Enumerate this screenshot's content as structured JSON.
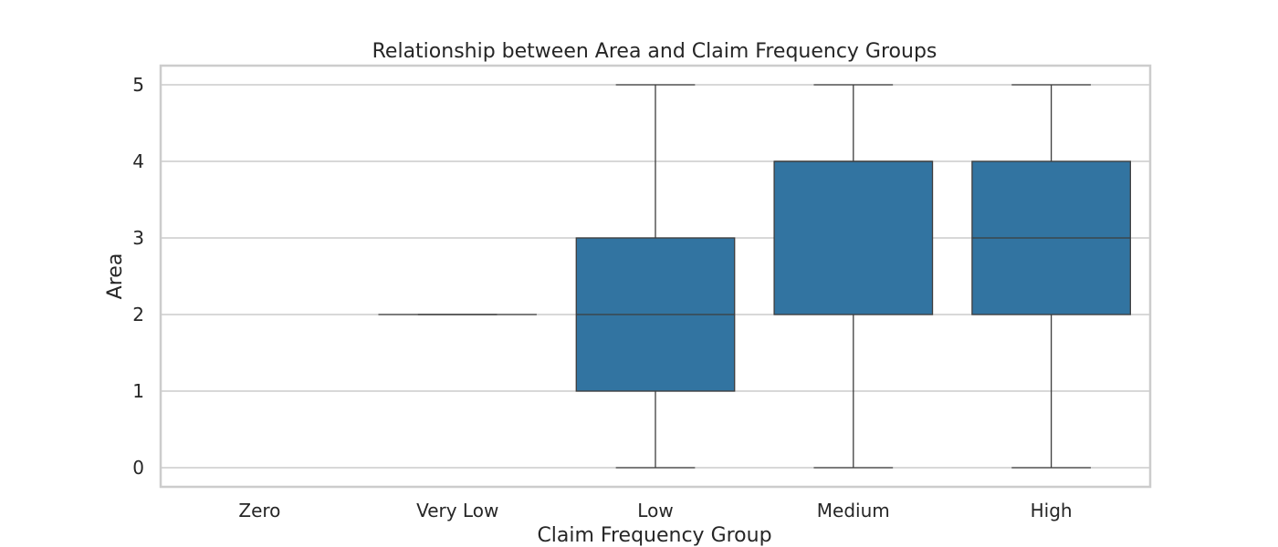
{
  "chart_data": {
    "type": "box",
    "title": "Relationship between Area and Claim Frequency Groups",
    "xlabel": "Claim Frequency Group",
    "ylabel": "Area",
    "categories": [
      "Zero",
      "Very Low",
      "Low",
      "Medium",
      "High"
    ],
    "boxes": [
      {
        "category": "Zero",
        "min": null,
        "q1": null,
        "median": null,
        "q3": null,
        "max": null
      },
      {
        "category": "Very Low",
        "min": 2,
        "q1": 2,
        "median": 2,
        "q3": 2,
        "max": 2
      },
      {
        "category": "Low",
        "min": 0,
        "q1": 1,
        "median": 2,
        "q3": 3,
        "max": 5
      },
      {
        "category": "Medium",
        "min": 0,
        "q1": 2,
        "median": 4,
        "q3": 4,
        "max": 5
      },
      {
        "category": "High",
        "min": 0,
        "q1": 2,
        "median": 3,
        "q3": 4,
        "max": 5
      }
    ],
    "yticks": [
      "0",
      "1",
      "2",
      "3",
      "4",
      "5"
    ],
    "ylim": [
      -0.25,
      5.25
    ],
    "grid": true,
    "colors": {
      "box_fill": "#3274a1",
      "line": "#3d3d3d",
      "grid": "#cccccc",
      "frame": "#cccccc"
    }
  }
}
